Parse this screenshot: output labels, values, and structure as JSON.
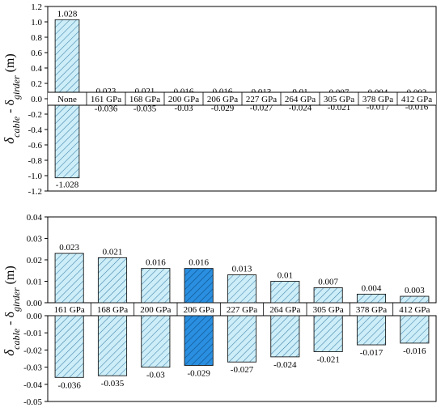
{
  "chart_data": [
    {
      "type": "bar",
      "title": "",
      "ylabel": {
        "main": "δ",
        "sub1": "cable",
        "mid": " - δ",
        "sub2": "girder",
        "unit": " (m)"
      },
      "ylim": [
        -1.2,
        1.2
      ],
      "yticks": [
        -1.2,
        -1.0,
        -0.8,
        -0.6,
        -0.4,
        -0.2,
        0.0,
        0.2,
        0.4,
        0.6,
        0.8,
        1.0,
        1.2
      ],
      "ytick_labels": [
        "-1.2",
        "-1.0",
        "-0.8",
        "-0.6",
        "-0.4",
        "-0.2",
        "0.0",
        "0.2",
        "0.4",
        "0.6",
        "0.8",
        "1.0",
        "1.2"
      ],
      "categories": [
        "None",
        "161 GPa",
        "168 GPa",
        "200 GPa",
        "206 GPa",
        "227 GPa",
        "264 GPa",
        "305 GPa",
        "378 GPa",
        "412 GPa"
      ],
      "series": [
        {
          "values": [
            1.028,
            0.023,
            0.021,
            0.016,
            0.016,
            0.013,
            0.01,
            0.007,
            0.004,
            0.003
          ],
          "labels": [
            "1.028",
            "0.023",
            "0.021",
            "0.016",
            "0.016",
            "0.013",
            "0.01",
            "0.007",
            "0.004",
            "0.003"
          ]
        },
        {
          "values": [
            -1.028,
            -0.036,
            -0.035,
            -0.03,
            -0.029,
            -0.027,
            -0.024,
            -0.021,
            -0.017,
            -0.016
          ],
          "labels": [
            "-1.028",
            "-0.036",
            "-0.035",
            "-0.03",
            "-0.029",
            "-0.027",
            "-0.024",
            "-0.021",
            "-0.017",
            "-0.016"
          ]
        }
      ],
      "highlight_category": "206 GPa",
      "colors": {
        "bar_fill": "#cdeef8",
        "hatch": "#3d7fa8",
        "highlight_fill": "#2a8fe0",
        "highlight_hatch": "#0d4f8a"
      }
    },
    {
      "type": "bar",
      "title": "",
      "ylabel": {
        "main": "δ",
        "sub1": "cable",
        "mid": " - δ",
        "sub2": "girder",
        "unit": " (m)"
      },
      "panels": [
        {
          "ylim": [
            0,
            0.04
          ],
          "yticks": [
            0.0,
            0.01,
            0.02,
            0.03,
            0.04
          ],
          "ytick_labels": [
            "0.00",
            "0.01",
            "0.02",
            "0.03",
            "0.04"
          ]
        },
        {
          "ylim": [
            -0.05,
            0
          ],
          "yticks": [
            0.0,
            -0.01,
            -0.02,
            -0.03,
            -0.04,
            -0.05
          ],
          "ytick_labels": [
            "0.00",
            "-0.01",
            "-0.02",
            "-0.03",
            "-0.04",
            "-0.05"
          ]
        }
      ],
      "categories": [
        "161 GPa",
        "168 GPa",
        "200 GPa",
        "206 GPa",
        "227 GPa",
        "264 GPa",
        "305 GPa",
        "378 GPa",
        "412 GPa"
      ],
      "series": [
        {
          "values": [
            0.023,
            0.021,
            0.016,
            0.016,
            0.013,
            0.01,
            0.007,
            0.004,
            0.003
          ],
          "labels": [
            "0.023",
            "0.021",
            "0.016",
            "0.016",
            "0.013",
            "0.01",
            "0.007",
            "0.004",
            "0.003"
          ]
        },
        {
          "values": [
            -0.036,
            -0.035,
            -0.03,
            -0.029,
            -0.027,
            -0.024,
            -0.021,
            -0.017,
            -0.016
          ],
          "labels": [
            "-0.036",
            "-0.035",
            "-0.03",
            "-0.029",
            "-0.027",
            "-0.024",
            "-0.021",
            "-0.017",
            "-0.016"
          ]
        }
      ],
      "highlight_category": "206 GPa",
      "colors": {
        "bar_fill": "#cdeef8",
        "hatch": "#3d7fa8",
        "highlight_fill": "#2a8fe0",
        "highlight_hatch": "#0d4f8a"
      }
    }
  ]
}
